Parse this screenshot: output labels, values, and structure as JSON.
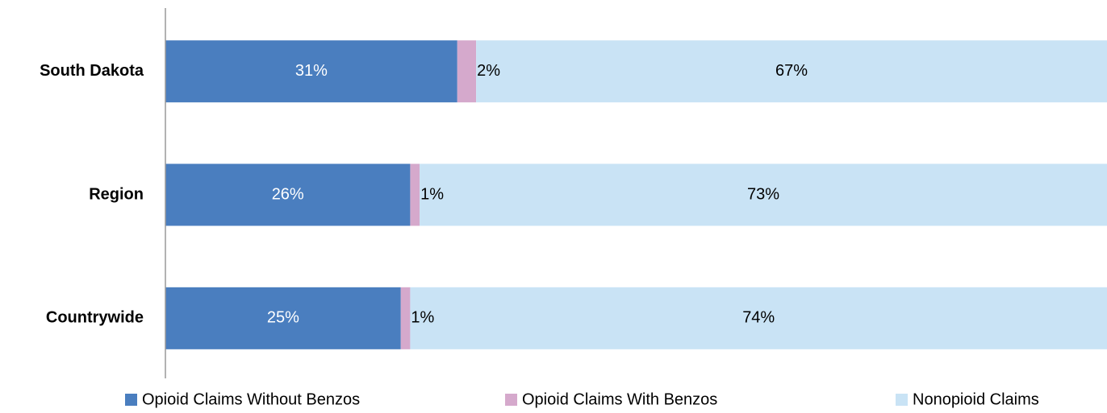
{
  "chart_data": {
    "type": "stacked-bar-horizontal",
    "categories": [
      "South Dakota",
      "Region",
      "Countrywide"
    ],
    "series": [
      {
        "name": "Opioid Claims Without Benzos",
        "color": "#4a7ebf",
        "values": [
          31,
          26,
          25
        ],
        "value_labels": [
          "31%",
          "26%",
          "25%"
        ]
      },
      {
        "name": "Opioid Claims With Benzos",
        "color": "#d5a9cc",
        "values": [
          2,
          1,
          1
        ],
        "value_labels": [
          "2%",
          "1%",
          "1%"
        ]
      },
      {
        "name": "Nonopioid Claims",
        "color": "#c9e3f5",
        "values": [
          67,
          73,
          74
        ],
        "value_labels": [
          "67%",
          "73%",
          "74%"
        ]
      }
    ],
    "xlim": [
      0,
      100
    ]
  }
}
